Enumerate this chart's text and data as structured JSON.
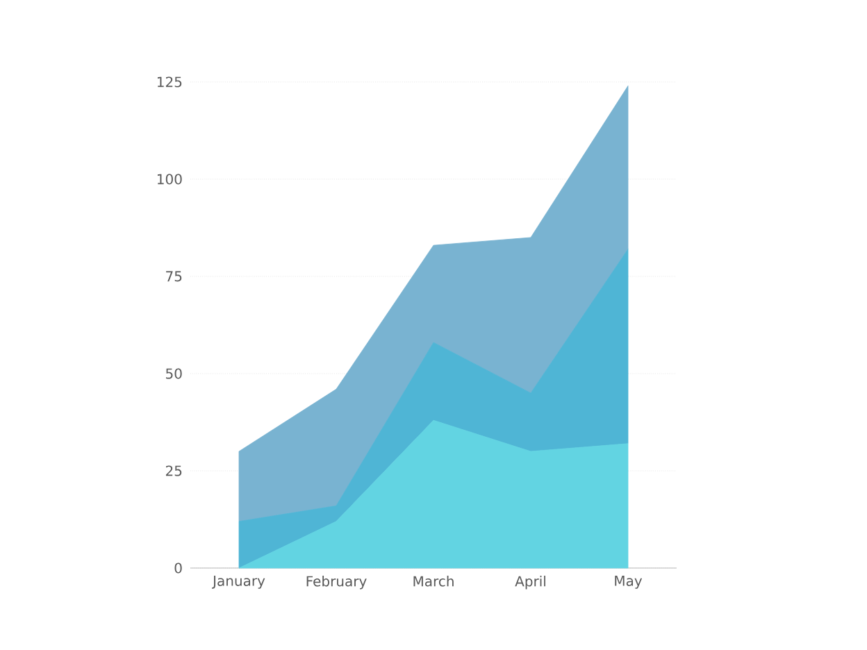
{
  "chart_data": {
    "type": "area",
    "stacked": true,
    "grid": "y",
    "categories": [
      "January",
      "February",
      "March",
      "April",
      "May"
    ],
    "series": [
      {
        "color": "#62d4e2",
        "values": [
          0,
          12,
          38,
          30,
          32
        ]
      },
      {
        "color": "#4fb5d5",
        "values": [
          12,
          4,
          20,
          15,
          50
        ]
      },
      {
        "color": "#79b3d1",
        "values": [
          18,
          30,
          25,
          40,
          42
        ]
      }
    ],
    "ylim": [
      0,
      125
    ],
    "yticks": [
      0,
      25,
      50,
      75,
      100,
      125
    ]
  }
}
